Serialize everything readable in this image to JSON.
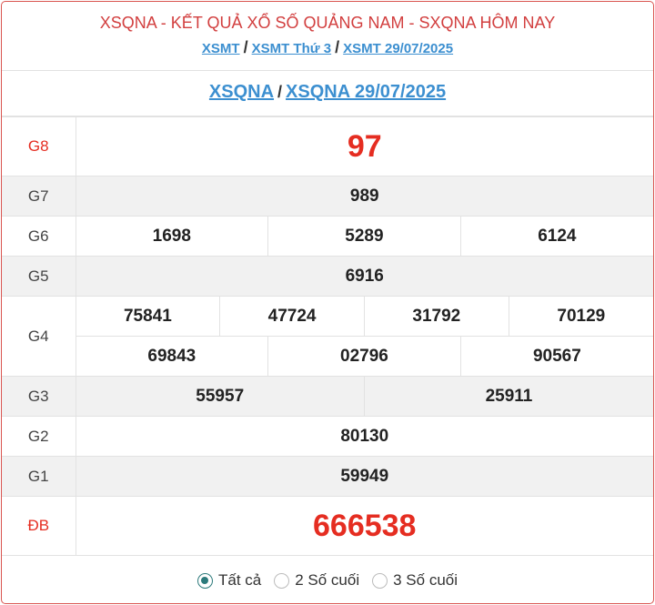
{
  "header": {
    "title": "XSQNA - KẾT QUẢ XỔ SỐ QUẢNG NAM - SXQNA HÔM NAY",
    "breadcrumb": [
      "XSMT",
      "XSMT Thứ 3",
      "XSMT 29/07/2025"
    ],
    "separator": "/"
  },
  "subheader": {
    "links": [
      "XSQNA",
      "XSQNA 29/07/2025"
    ]
  },
  "results": {
    "g8": {
      "label": "G8",
      "values": [
        "97"
      ]
    },
    "g7": {
      "label": "G7",
      "values": [
        "989"
      ]
    },
    "g6": {
      "label": "G6",
      "values": [
        "1698",
        "5289",
        "6124"
      ]
    },
    "g5": {
      "label": "G5",
      "values": [
        "6916"
      ]
    },
    "g4": {
      "label": "G4",
      "values": [
        "75841",
        "47724",
        "31792",
        "70129",
        "69843",
        "02796",
        "90567"
      ]
    },
    "g3": {
      "label": "G3",
      "values": [
        "55957",
        "25911"
      ]
    },
    "g2": {
      "label": "G2",
      "values": [
        "80130"
      ]
    },
    "g1": {
      "label": "G1",
      "values": [
        "59949"
      ]
    },
    "db": {
      "label": "ĐB",
      "values": [
        "666538"
      ]
    }
  },
  "filter": {
    "options": [
      "Tất cả",
      "2 Số cuối",
      "3 Số cuối"
    ],
    "selected": "Tất cả"
  },
  "colors": {
    "accent": "#e52d21",
    "link": "#3c8fd0",
    "border": "#d9534f",
    "radio": "#2c7a7b"
  }
}
